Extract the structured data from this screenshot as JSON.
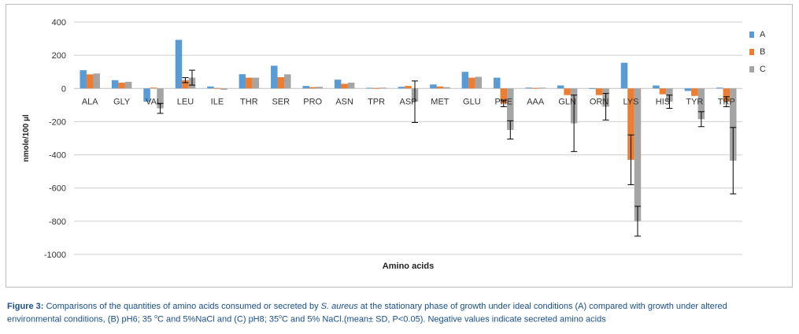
{
  "chart_data": {
    "type": "bar",
    "xlabel": "Amino acids",
    "ylabel": "nmole/100 µl",
    "ylim": [
      -1000,
      400
    ],
    "yticks": [
      400,
      200,
      0,
      -200,
      -400,
      -600,
      -800,
      -1000
    ],
    "grid": true,
    "legend_position": "right",
    "categories": [
      "ALA",
      "GLY",
      "VAL",
      "LEU",
      "ILE",
      "THR",
      "SER",
      "PRO",
      "ASN",
      "TPR",
      "ASP",
      "MET",
      "GLU",
      "PHE",
      "AAA",
      "GLN",
      "ORN",
      "LYS",
      "HIS",
      "TYR",
      "TRP"
    ],
    "series": [
      {
        "name": "A",
        "color": "#5B9BD5",
        "values": [
          110,
          50,
          -80,
          293,
          12,
          86,
          137,
          15,
          53,
          4,
          10,
          24,
          100,
          65,
          5,
          18,
          2,
          155,
          18,
          -15,
          5
        ],
        "errors": [
          0,
          0,
          0,
          0,
          0,
          0,
          0,
          0,
          0,
          0,
          0,
          0,
          0,
          0,
          0,
          0,
          0,
          0,
          0,
          0,
          0
        ]
      },
      {
        "name": "B",
        "color": "#ED7D31",
        "values": [
          85,
          35,
          5,
          50,
          3,
          65,
          68,
          8,
          28,
          3,
          15,
          12,
          65,
          -90,
          3,
          -40,
          -40,
          -430,
          -35,
          -45,
          -80
        ],
        "errors": [
          0,
          0,
          0,
          15,
          0,
          0,
          0,
          0,
          0,
          0,
          0,
          0,
          0,
          20,
          0,
          0,
          0,
          150,
          0,
          0,
          30
        ]
      },
      {
        "name": "C",
        "color": "#A5A5A5",
        "values": [
          90,
          40,
          -120,
          65,
          -8,
          65,
          85,
          10,
          35,
          5,
          -80,
          8,
          70,
          -250,
          5,
          -210,
          -110,
          -800,
          -80,
          -185,
          -435
        ],
        "errors": [
          0,
          0,
          30,
          45,
          0,
          0,
          0,
          0,
          0,
          0,
          125,
          0,
          0,
          55,
          0,
          170,
          80,
          90,
          40,
          45,
          200
        ]
      }
    ]
  },
  "caption": {
    "label": "Figure 3:",
    "text_before": " Comparisons of the quantities of amino acids consumed or secreted by ",
    "organism": "S. aureus",
    "text_after_line1": " at the stationary phase of growth under ideal conditions (A) compared with growth under altered",
    "line2_a": "environmental conditions, (B) pH6; 35 ",
    "deg1": "o",
    "line2_b": "C and 5%NaCl and (C) pH8; 35",
    "deg2": "o",
    "line2_c": "C and 5% NaCl.(mean± SD, P<0.05). Negative values indicate secreted amino acids"
  }
}
